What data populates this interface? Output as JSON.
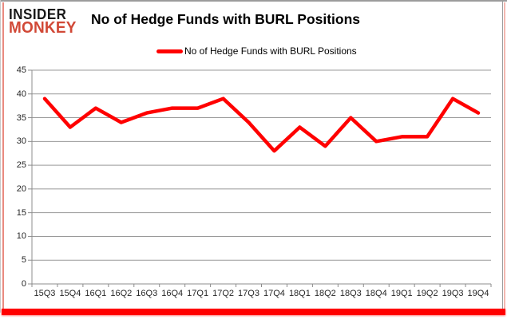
{
  "logo": {
    "line1": "INSIDER",
    "line2": "MONKEY"
  },
  "header": {
    "title": "No of Hedge Funds with BURL Positions"
  },
  "legend": {
    "label": "No of Hedge Funds with BURL Positions"
  },
  "colors": {
    "line": "#ff0000",
    "logo_black": "#181818",
    "logo_red": "#d14836",
    "bottom_border": "#ff0000",
    "grid": "#9a9a9a",
    "tick_text": "#262626"
  },
  "chart_data": {
    "type": "line",
    "title": "No of Hedge Funds with BURL Positions",
    "xlabel": "",
    "ylabel": "",
    "categories": [
      "15Q3",
      "15Q4",
      "16Q1",
      "16Q2",
      "16Q3",
      "16Q4",
      "17Q1",
      "17Q2",
      "17Q3",
      "17Q4",
      "18Q1",
      "18Q2",
      "18Q3",
      "18Q4",
      "19Q1",
      "19Q2",
      "19Q3",
      "19Q4"
    ],
    "series": [
      {
        "name": "No of Hedge Funds with BURL Positions",
        "color": "#ff0000",
        "values": [
          39,
          33,
          37,
          34,
          36,
          37,
          37,
          39,
          34,
          28,
          33,
          29,
          35,
          30,
          31,
          31,
          39,
          36
        ]
      }
    ],
    "ylim": [
      0,
      45
    ],
    "yticks": [
      0,
      5,
      10,
      15,
      20,
      25,
      30,
      35,
      40,
      45
    ],
    "grid": true,
    "legend_position": "top-center"
  }
}
